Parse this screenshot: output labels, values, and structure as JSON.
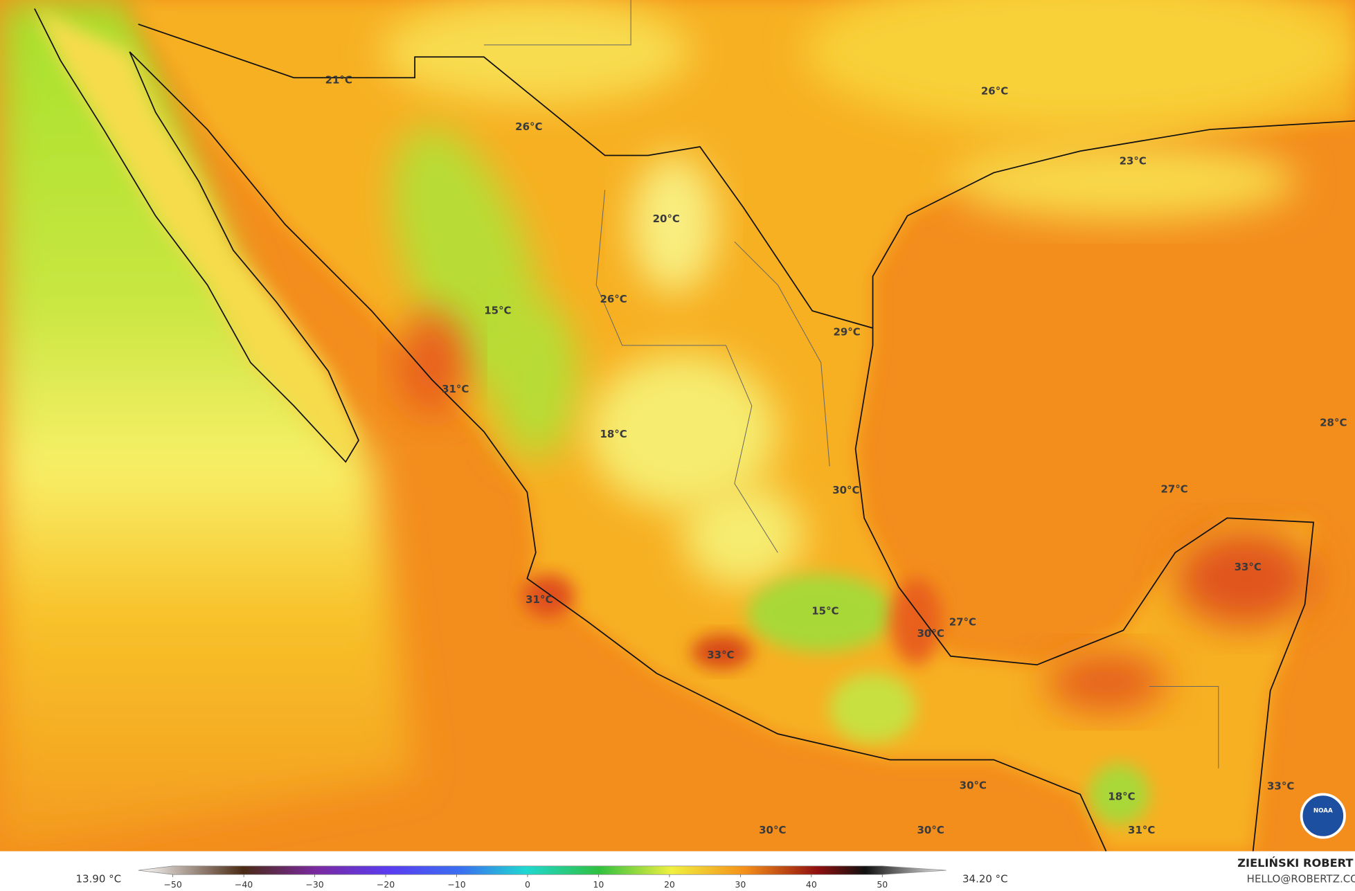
{
  "map": {
    "temperature_labels": [
      "21°C",
      "26°C",
      "26°C",
      "23°C",
      "20°C",
      "26°C",
      "15°C",
      "29°C",
      "31°C",
      "18°C",
      "28°C",
      "30°C",
      "27°C",
      "33°C",
      "31°C",
      "15°C",
      "27°C",
      "30°C",
      "33°C",
      "30°C",
      "33°C",
      "18°C",
      "30°C",
      "30°C",
      "31°C"
    ]
  },
  "colorbar": {
    "min_label": "13.90 °C",
    "max_label": "34.20 °C",
    "ticks": [
      "−50",
      "−40",
      "−30",
      "−20",
      "−10",
      "0",
      "10",
      "20",
      "30",
      "40",
      "50"
    ]
  },
  "credit": {
    "author": "ZIELIŃSKI ROBERT",
    "email": "HELLO@ROBERTZ.CO"
  },
  "logo": {
    "text": "NOAA"
  }
}
